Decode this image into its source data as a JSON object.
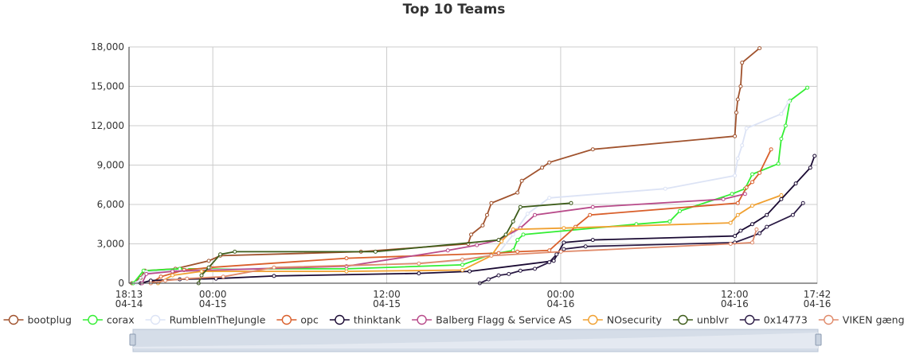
{
  "chart_data": {
    "type": "line",
    "title": "Top 10 Teams",
    "xlabel": "",
    "ylabel": "",
    "x_range": [
      "04-14 18:13",
      "04-16 17:42"
    ],
    "ylim": [
      0,
      18000
    ],
    "y_ticks": [
      {
        "value": 0,
        "label": "0"
      },
      {
        "value": 3000,
        "label": "3,000"
      },
      {
        "value": 6000,
        "label": "6,000"
      },
      {
        "value": 9000,
        "label": "9,000"
      },
      {
        "value": 12000,
        "label": "12,000"
      },
      {
        "value": 15000,
        "label": "15,000"
      },
      {
        "value": 18000,
        "label": "18,000"
      }
    ],
    "x_ticks": [
      {
        "value": 0,
        "time": "18:13",
        "date": "04-14"
      },
      {
        "value": 5.78,
        "time": "00:00",
        "date": "04-15"
      },
      {
        "value": 17.78,
        "time": "12:00",
        "date": "04-15"
      },
      {
        "value": 29.78,
        "time": "00:00",
        "date": "04-16"
      },
      {
        "value": 41.78,
        "time": "12:00",
        "date": "04-16"
      },
      {
        "value": 47.48,
        "time": "17:42",
        "date": "04-16"
      }
    ],
    "grid": true,
    "legend_position": "bottom",
    "series": [
      {
        "name": "bootplug",
        "color": "#a0522d",
        "points": [
          [
            0.2,
            0
          ],
          [
            0.8,
            400
          ],
          [
            1.1,
            950
          ],
          [
            3.2,
            1100
          ],
          [
            5.5,
            1700
          ],
          [
            6.3,
            2100
          ],
          [
            16.0,
            2400
          ],
          [
            23.4,
            3000
          ],
          [
            23.6,
            3700
          ],
          [
            24.4,
            4400
          ],
          [
            24.7,
            5200
          ],
          [
            25.0,
            6100
          ],
          [
            26.8,
            6900
          ],
          [
            27.1,
            7800
          ],
          [
            28.5,
            8800
          ],
          [
            29.0,
            9200
          ],
          [
            32.0,
            10200
          ],
          [
            41.8,
            11200
          ],
          [
            41.9,
            13000
          ],
          [
            42.0,
            14000
          ],
          [
            42.2,
            15000
          ],
          [
            42.3,
            16800
          ],
          [
            43.5,
            17900
          ]
        ]
      },
      {
        "name": "corax",
        "color": "#33ee33",
        "points": [
          [
            0.3,
            0
          ],
          [
            1.0,
            950
          ],
          [
            3.5,
            1100
          ],
          [
            15.0,
            1100
          ],
          [
            23.0,
            1400
          ],
          [
            25.0,
            2200
          ],
          [
            26.5,
            2500
          ],
          [
            26.8,
            3300
          ],
          [
            27.2,
            3700
          ],
          [
            35.0,
            4500
          ],
          [
            37.3,
            4700
          ],
          [
            38.0,
            5500
          ],
          [
            41.6,
            6800
          ],
          [
            42.5,
            7200
          ],
          [
            43.0,
            8300
          ],
          [
            44.8,
            9100
          ],
          [
            45.0,
            11000
          ],
          [
            45.3,
            12000
          ],
          [
            45.6,
            13900
          ],
          [
            46.8,
            14900
          ]
        ]
      },
      {
        "name": "RumbleInTheJungle",
        "color": "#dce3f5",
        "points": [
          [
            0.5,
            0
          ],
          [
            1.2,
            850
          ],
          [
            4.0,
            1000
          ],
          [
            15.0,
            1300
          ],
          [
            23.0,
            1700
          ],
          [
            25.5,
            2300
          ],
          [
            26.5,
            3700
          ],
          [
            27.5,
            5300
          ],
          [
            29.0,
            6500
          ],
          [
            37.0,
            7200
          ],
          [
            41.8,
            8200
          ],
          [
            42.0,
            9500
          ],
          [
            42.3,
            10500
          ],
          [
            42.6,
            11800
          ],
          [
            45.0,
            12900
          ],
          [
            45.5,
            13800
          ]
        ]
      },
      {
        "name": "opc",
        "color": "#d95f2b",
        "points": [
          [
            1.5,
            0
          ],
          [
            2.2,
            500
          ],
          [
            3.8,
            1000
          ],
          [
            5.6,
            1200
          ],
          [
            15.0,
            1900
          ],
          [
            25.5,
            2300
          ],
          [
            26.8,
            2400
          ],
          [
            29.0,
            2500
          ],
          [
            30.8,
            4300
          ],
          [
            31.8,
            5200
          ],
          [
            42.0,
            6100
          ],
          [
            42.6,
            7300
          ],
          [
            43.0,
            7700
          ],
          [
            43.5,
            8400
          ],
          [
            44.3,
            10200
          ]
        ]
      },
      {
        "name": "thinktank",
        "color": "#1a0a33",
        "points": [
          [
            0.8,
            0
          ],
          [
            1.5,
            200
          ],
          [
            3.5,
            300
          ],
          [
            6.0,
            350
          ],
          [
            10.0,
            550
          ],
          [
            20.0,
            750
          ],
          [
            23.5,
            900
          ],
          [
            29.3,
            1700
          ],
          [
            30.0,
            3100
          ],
          [
            32.0,
            3300
          ],
          [
            41.8,
            3600
          ],
          [
            42.2,
            4000
          ],
          [
            43.0,
            4500
          ],
          [
            44.0,
            5200
          ],
          [
            45.0,
            6400
          ],
          [
            46.0,
            7600
          ],
          [
            47.0,
            8800
          ],
          [
            47.3,
            9700
          ]
        ]
      },
      {
        "name": "Balberg Flagg & Service AS",
        "color": "#b84b8a",
        "points": [
          [
            0.9,
            0
          ],
          [
            1.2,
            700
          ],
          [
            3.0,
            900
          ],
          [
            15.0,
            1300
          ],
          [
            22.0,
            2500
          ],
          [
            24.0,
            2900
          ],
          [
            25.5,
            3300
          ],
          [
            27.0,
            4200
          ],
          [
            28.0,
            5200
          ],
          [
            32.0,
            5800
          ],
          [
            41.0,
            6400
          ],
          [
            42.5,
            6800
          ]
        ]
      },
      {
        "name": "NOsecurity",
        "color": "#f0a030",
        "points": [
          [
            2.0,
            0
          ],
          [
            3.0,
            600
          ],
          [
            5.0,
            900
          ],
          [
            15.0,
            900
          ],
          [
            23.0,
            1000
          ],
          [
            25.0,
            2100
          ],
          [
            25.7,
            3200
          ],
          [
            26.5,
            4100
          ],
          [
            30.0,
            4200
          ],
          [
            41.5,
            4600
          ],
          [
            42.0,
            5200
          ],
          [
            43.0,
            5900
          ],
          [
            45.0,
            6700
          ]
        ]
      },
      {
        "name": "unblvr",
        "color": "#3d5c1a",
        "points": [
          [
            4.8,
            0
          ],
          [
            5.0,
            600
          ],
          [
            5.5,
            1200
          ],
          [
            6.3,
            2200
          ],
          [
            7.3,
            2400
          ],
          [
            17.0,
            2400
          ],
          [
            25.5,
            3300
          ],
          [
            26.0,
            3700
          ],
          [
            26.5,
            4700
          ],
          [
            27.0,
            5800
          ],
          [
            30.5,
            6100
          ]
        ]
      },
      {
        "name": "0x14773",
        "color": "#2a1a44",
        "points": [
          [
            24.2,
            0
          ],
          [
            24.8,
            300
          ],
          [
            25.5,
            600
          ],
          [
            26.2,
            700
          ],
          [
            27.0,
            950
          ],
          [
            28.0,
            1100
          ],
          [
            29.0,
            1600
          ],
          [
            29.5,
            2200
          ],
          [
            30.0,
            2600
          ],
          [
            31.5,
            2800
          ],
          [
            41.8,
            3100
          ],
          [
            43.5,
            3800
          ],
          [
            44.0,
            4300
          ],
          [
            45.8,
            5200
          ],
          [
            46.5,
            6100
          ]
        ]
      },
      {
        "name": "VIKEN gæng",
        "color": "#e08a6a",
        "points": [
          [
            1.5,
            0
          ],
          [
            2.5,
            200
          ],
          [
            4.0,
            350
          ],
          [
            6.5,
            500
          ],
          [
            10.0,
            1200
          ],
          [
            20.0,
            1500
          ],
          [
            23.0,
            1800
          ],
          [
            25.0,
            2100
          ],
          [
            29.8,
            2400
          ],
          [
            41.5,
            3000
          ],
          [
            43.0,
            3100
          ],
          [
            43.3,
            4100
          ]
        ]
      }
    ]
  }
}
